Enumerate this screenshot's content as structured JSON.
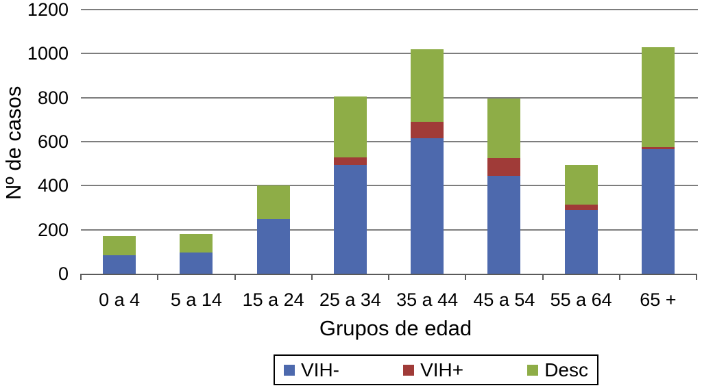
{
  "chart_data": {
    "type": "bar",
    "stacked": true,
    "title": "",
    "xlabel": "Grupos de edad",
    "ylabel": "Nº de casos",
    "categories": [
      "0 a 4",
      "5 a 14",
      "15 a 24",
      "25 a 34",
      "35 a 44",
      "45 a 54",
      "55 a 64",
      "65 +"
    ],
    "series": [
      {
        "name": "VIH-",
        "color": "#4D69AD",
        "values": [
          85,
          95,
          250,
          495,
          615,
          445,
          290,
          565
        ]
      },
      {
        "name": "VIH+",
        "color": "#A03B38",
        "values": [
          0,
          0,
          0,
          35,
          75,
          80,
          25,
          10
        ]
      },
      {
        "name": "Desc",
        "color": "#8EAD47",
        "values": [
          85,
          85,
          150,
          275,
          330,
          270,
          180,
          455
        ]
      }
    ],
    "totals": [
      170,
      180,
      400,
      805,
      1020,
      795,
      495,
      1030
    ],
    "ylim": [
      0,
      1200
    ],
    "yticks": [
      0,
      200,
      400,
      600,
      800,
      1000,
      1200
    ],
    "grid": true,
    "legend_position": "bottom",
    "gridline_color": "#7D7D7D",
    "axis_color": "#5A5A5A",
    "text_color": "#000000"
  }
}
